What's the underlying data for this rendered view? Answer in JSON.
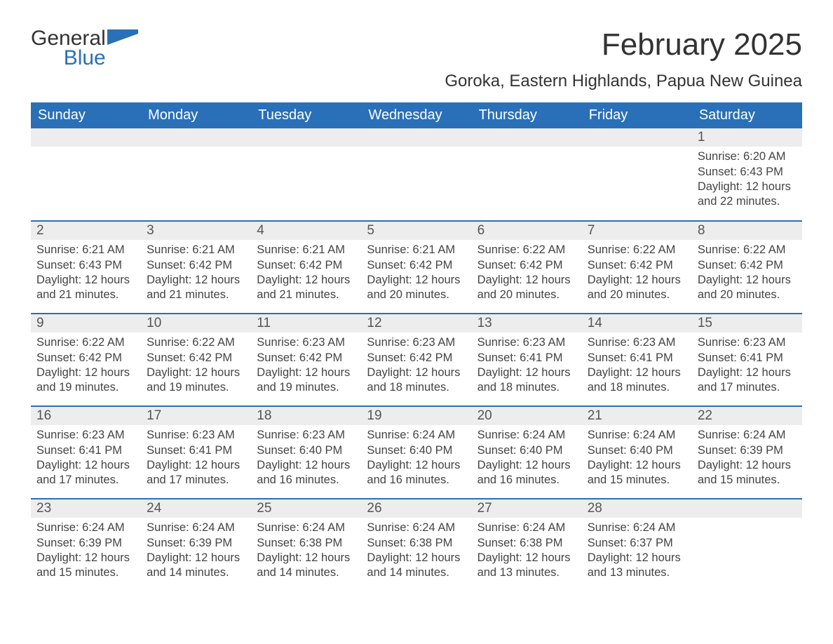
{
  "brand": {
    "name_a": "General",
    "name_b": "Blue"
  },
  "colors": {
    "header_bg": "#2970b8",
    "header_text": "#ffffff",
    "band_bg": "#ededed",
    "rule": "#2970b8",
    "text": "#333333",
    "logo_blue": "#2970b8"
  },
  "typography": {
    "month_title_fontsize": 44,
    "location_fontsize": 24,
    "dayheader_fontsize": 20,
    "daynum_fontsize": 19,
    "body_fontsize": 16.5
  },
  "title": "February 2025",
  "location": "Goroka, Eastern Highlands, Papua New Guinea",
  "day_headers": [
    "Sunday",
    "Monday",
    "Tuesday",
    "Wednesday",
    "Thursday",
    "Friday",
    "Saturday"
  ],
  "weeks": [
    [
      {
        "day": "",
        "sunrise": "",
        "sunset": "",
        "daylight": ""
      },
      {
        "day": "",
        "sunrise": "",
        "sunset": "",
        "daylight": ""
      },
      {
        "day": "",
        "sunrise": "",
        "sunset": "",
        "daylight": ""
      },
      {
        "day": "",
        "sunrise": "",
        "sunset": "",
        "daylight": ""
      },
      {
        "day": "",
        "sunrise": "",
        "sunset": "",
        "daylight": ""
      },
      {
        "day": "",
        "sunrise": "",
        "sunset": "",
        "daylight": ""
      },
      {
        "day": "1",
        "sunrise": "Sunrise: 6:20 AM",
        "sunset": "Sunset: 6:43 PM",
        "daylight": "Daylight: 12 hours and 22 minutes."
      }
    ],
    [
      {
        "day": "2",
        "sunrise": "Sunrise: 6:21 AM",
        "sunset": "Sunset: 6:43 PM",
        "daylight": "Daylight: 12 hours and 21 minutes."
      },
      {
        "day": "3",
        "sunrise": "Sunrise: 6:21 AM",
        "sunset": "Sunset: 6:42 PM",
        "daylight": "Daylight: 12 hours and 21 minutes."
      },
      {
        "day": "4",
        "sunrise": "Sunrise: 6:21 AM",
        "sunset": "Sunset: 6:42 PM",
        "daylight": "Daylight: 12 hours and 21 minutes."
      },
      {
        "day": "5",
        "sunrise": "Sunrise: 6:21 AM",
        "sunset": "Sunset: 6:42 PM",
        "daylight": "Daylight: 12 hours and 20 minutes."
      },
      {
        "day": "6",
        "sunrise": "Sunrise: 6:22 AM",
        "sunset": "Sunset: 6:42 PM",
        "daylight": "Daylight: 12 hours and 20 minutes."
      },
      {
        "day": "7",
        "sunrise": "Sunrise: 6:22 AM",
        "sunset": "Sunset: 6:42 PM",
        "daylight": "Daylight: 12 hours and 20 minutes."
      },
      {
        "day": "8",
        "sunrise": "Sunrise: 6:22 AM",
        "sunset": "Sunset: 6:42 PM",
        "daylight": "Daylight: 12 hours and 20 minutes."
      }
    ],
    [
      {
        "day": "9",
        "sunrise": "Sunrise: 6:22 AM",
        "sunset": "Sunset: 6:42 PM",
        "daylight": "Daylight: 12 hours and 19 minutes."
      },
      {
        "day": "10",
        "sunrise": "Sunrise: 6:22 AM",
        "sunset": "Sunset: 6:42 PM",
        "daylight": "Daylight: 12 hours and 19 minutes."
      },
      {
        "day": "11",
        "sunrise": "Sunrise: 6:23 AM",
        "sunset": "Sunset: 6:42 PM",
        "daylight": "Daylight: 12 hours and 19 minutes."
      },
      {
        "day": "12",
        "sunrise": "Sunrise: 6:23 AM",
        "sunset": "Sunset: 6:42 PM",
        "daylight": "Daylight: 12 hours and 18 minutes."
      },
      {
        "day": "13",
        "sunrise": "Sunrise: 6:23 AM",
        "sunset": "Sunset: 6:41 PM",
        "daylight": "Daylight: 12 hours and 18 minutes."
      },
      {
        "day": "14",
        "sunrise": "Sunrise: 6:23 AM",
        "sunset": "Sunset: 6:41 PM",
        "daylight": "Daylight: 12 hours and 18 minutes."
      },
      {
        "day": "15",
        "sunrise": "Sunrise: 6:23 AM",
        "sunset": "Sunset: 6:41 PM",
        "daylight": "Daylight: 12 hours and 17 minutes."
      }
    ],
    [
      {
        "day": "16",
        "sunrise": "Sunrise: 6:23 AM",
        "sunset": "Sunset: 6:41 PM",
        "daylight": "Daylight: 12 hours and 17 minutes."
      },
      {
        "day": "17",
        "sunrise": "Sunrise: 6:23 AM",
        "sunset": "Sunset: 6:41 PM",
        "daylight": "Daylight: 12 hours and 17 minutes."
      },
      {
        "day": "18",
        "sunrise": "Sunrise: 6:23 AM",
        "sunset": "Sunset: 6:40 PM",
        "daylight": "Daylight: 12 hours and 16 minutes."
      },
      {
        "day": "19",
        "sunrise": "Sunrise: 6:24 AM",
        "sunset": "Sunset: 6:40 PM",
        "daylight": "Daylight: 12 hours and 16 minutes."
      },
      {
        "day": "20",
        "sunrise": "Sunrise: 6:24 AM",
        "sunset": "Sunset: 6:40 PM",
        "daylight": "Daylight: 12 hours and 16 minutes."
      },
      {
        "day": "21",
        "sunrise": "Sunrise: 6:24 AM",
        "sunset": "Sunset: 6:40 PM",
        "daylight": "Daylight: 12 hours and 15 minutes."
      },
      {
        "day": "22",
        "sunrise": "Sunrise: 6:24 AM",
        "sunset": "Sunset: 6:39 PM",
        "daylight": "Daylight: 12 hours and 15 minutes."
      }
    ],
    [
      {
        "day": "23",
        "sunrise": "Sunrise: 6:24 AM",
        "sunset": "Sunset: 6:39 PM",
        "daylight": "Daylight: 12 hours and 15 minutes."
      },
      {
        "day": "24",
        "sunrise": "Sunrise: 6:24 AM",
        "sunset": "Sunset: 6:39 PM",
        "daylight": "Daylight: 12 hours and 14 minutes."
      },
      {
        "day": "25",
        "sunrise": "Sunrise: 6:24 AM",
        "sunset": "Sunset: 6:38 PM",
        "daylight": "Daylight: 12 hours and 14 minutes."
      },
      {
        "day": "26",
        "sunrise": "Sunrise: 6:24 AM",
        "sunset": "Sunset: 6:38 PM",
        "daylight": "Daylight: 12 hours and 14 minutes."
      },
      {
        "day": "27",
        "sunrise": "Sunrise: 6:24 AM",
        "sunset": "Sunset: 6:38 PM",
        "daylight": "Daylight: 12 hours and 13 minutes."
      },
      {
        "day": "28",
        "sunrise": "Sunrise: 6:24 AM",
        "sunset": "Sunset: 6:37 PM",
        "daylight": "Daylight: 12 hours and 13 minutes."
      },
      {
        "day": "",
        "sunrise": "",
        "sunset": "",
        "daylight": ""
      }
    ]
  ]
}
